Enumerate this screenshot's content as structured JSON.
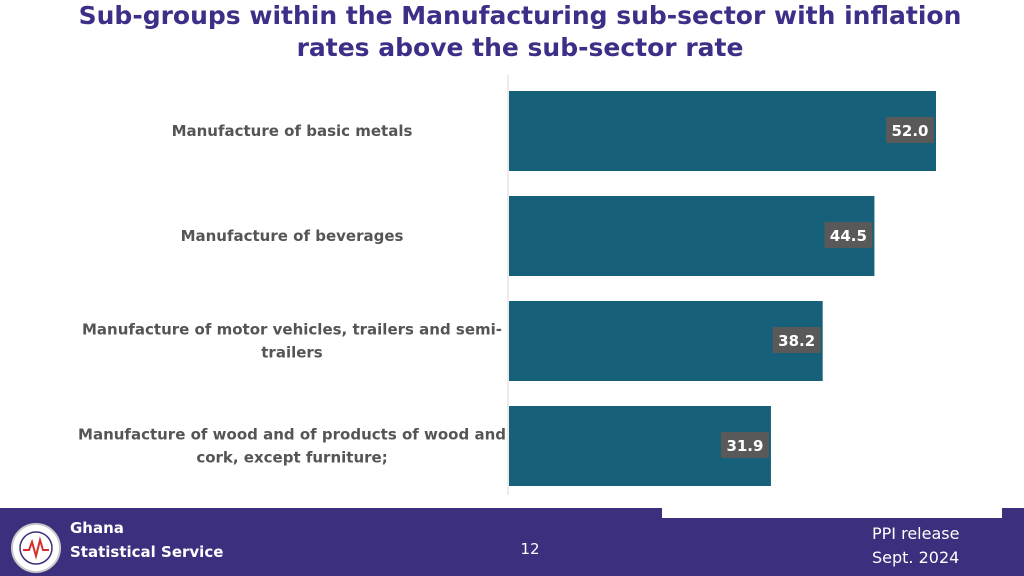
{
  "slide": {
    "title_line1": "Sub-groups within the Manufacturing sub-sector with inflation",
    "title_line2": "rates above the sub-sector rate"
  },
  "colors": {
    "bar": "#17607a",
    "label_box": "#595959",
    "footer": "#3b2f7e",
    "title": "#3b2f87"
  },
  "chart_data": {
    "type": "bar",
    "orientation": "horizontal",
    "title": "",
    "xlabel": "",
    "ylabel": "",
    "categories": [
      [
        "Manufacture of basic metals"
      ],
      [
        "Manufacture of beverages"
      ],
      [
        "Manufacture of motor vehicles, trailers and semi-",
        "trailers"
      ],
      [
        "Manufacture of wood and of products of wood and",
        "cork, except furniture;"
      ]
    ],
    "values": [
      52.0,
      44.5,
      38.2,
      31.9
    ],
    "data_labels": [
      "52.0",
      "44.5",
      "38.2",
      "31.9"
    ],
    "xlim": [
      0,
      52.0
    ],
    "grid": false,
    "legend": "none"
  },
  "footer": {
    "org_line1": "Ghana",
    "org_line2": "Statistical Service",
    "logo_icon": "ghana-statistical-service-seal-icon",
    "page_number": "12",
    "release_line1": "PPI release",
    "release_line2": "Sept. 2024"
  }
}
